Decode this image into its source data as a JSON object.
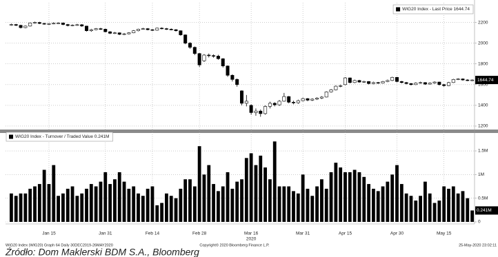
{
  "chart_data": [
    {
      "type": "candlestick",
      "legend_position": "upper right",
      "grid": true,
      "ylim": [
        1160,
        2350
      ],
      "yticks": [
        1200,
        1400,
        1600,
        1800,
        2000,
        2200
      ],
      "series": [
        {
          "name": "WIG20 Index - Last Price 1644.74",
          "color": "#000000",
          "open": [
            2175,
            2180,
            2172,
            2150,
            2165,
            2195,
            2200,
            2190,
            2185,
            2188,
            2192,
            2195,
            2180,
            2170,
            2175,
            2178,
            2165,
            2120,
            2130,
            2140,
            2135,
            2110,
            2095,
            2100,
            2085,
            2090,
            2100,
            2120,
            2135,
            2140,
            2130,
            2125,
            2145,
            2140,
            2135,
            2130,
            2120,
            2080,
            2000,
            1960,
            1900,
            1830,
            1885,
            1880,
            1875,
            1850,
            1780,
            1690,
            1650,
            1540,
            1420,
            1400,
            1330,
            1345,
            1320,
            1390,
            1420,
            1405,
            1440,
            1485,
            1430,
            1425,
            1445,
            1465,
            1450,
            1460,
            1470,
            1480,
            1530,
            1550,
            1585,
            1600,
            1665,
            1620,
            1640,
            1625,
            1630,
            1610,
            1620,
            1615,
            1630,
            1640,
            1670,
            1630,
            1620,
            1610,
            1600,
            1615,
            1620,
            1605,
            1615,
            1625,
            1600,
            1590,
            1620,
            1650,
            1655,
            1645,
            1640
          ],
          "high": [
            2188,
            2186,
            2178,
            2170,
            2200,
            2208,
            2206,
            2196,
            2194,
            2200,
            2202,
            2199,
            2186,
            2182,
            2186,
            2184,
            2168,
            2138,
            2146,
            2148,
            2140,
            2116,
            2108,
            2104,
            2098,
            2106,
            2126,
            2140,
            2148,
            2146,
            2136,
            2150,
            2152,
            2146,
            2142,
            2136,
            2124,
            2084,
            2010,
            1968,
            1905,
            1895,
            1900,
            1892,
            1888,
            1855,
            1785,
            1700,
            1660,
            1545,
            1500,
            1410,
            1370,
            1360,
            1400,
            1435,
            1430,
            1452,
            1520,
            1490,
            1445,
            1455,
            1475,
            1470,
            1468,
            1478,
            1488,
            1536,
            1558,
            1592,
            1600,
            1672,
            1668,
            1648,
            1646,
            1638,
            1634,
            1628,
            1626,
            1636,
            1648,
            1676,
            1674,
            1636,
            1626,
            1616,
            1622,
            1628,
            1624,
            1622,
            1632,
            1628,
            1606,
            1626,
            1656,
            1662,
            1660,
            1652,
            1650
          ],
          "low": [
            2168,
            2165,
            2142,
            2144,
            2160,
            2188,
            2184,
            2178,
            2176,
            2182,
            2186,
            2174,
            2162,
            2164,
            2168,
            2158,
            2112,
            2110,
            2124,
            2128,
            2104,
            2088,
            2088,
            2078,
            2078,
            2084,
            2096,
            2114,
            2130,
            2124,
            2118,
            2120,
            2134,
            2128,
            2124,
            2112,
            2072,
            1990,
            1945,
            1885,
            1770,
            1820,
            1862,
            1860,
            1840,
            1765,
            1675,
            1630,
            1580,
            1400,
            1390,
            1310,
            1300,
            1290,
            1310,
            1370,
            1390,
            1395,
            1435,
            1420,
            1410,
            1415,
            1438,
            1440,
            1442,
            1452,
            1462,
            1476,
            1524,
            1545,
            1575,
            1595,
            1612,
            1614,
            1618,
            1618,
            1602,
            1604,
            1608,
            1610,
            1624,
            1634,
            1622,
            1612,
            1602,
            1592,
            1596,
            1608,
            1598,
            1600,
            1608,
            1592,
            1580,
            1586,
            1616,
            1644,
            1638,
            1634,
            1634
          ],
          "close": [
            2180,
            2172,
            2150,
            2165,
            2195,
            2200,
            2190,
            2185,
            2188,
            2192,
            2195,
            2180,
            2170,
            2175,
            2178,
            2165,
            2120,
            2130,
            2140,
            2135,
            2110,
            2095,
            2100,
            2085,
            2090,
            2100,
            2120,
            2135,
            2140,
            2130,
            2125,
            2145,
            2140,
            2135,
            2130,
            2120,
            2080,
            2000,
            1960,
            1900,
            1790,
            1885,
            1880,
            1875,
            1850,
            1780,
            1690,
            1650,
            1600,
            1420,
            1440,
            1330,
            1345,
            1320,
            1390,
            1420,
            1405,
            1440,
            1485,
            1430,
            1425,
            1445,
            1465,
            1450,
            1460,
            1470,
            1480,
            1530,
            1550,
            1585,
            1590,
            1665,
            1620,
            1640,
            1625,
            1630,
            1610,
            1620,
            1615,
            1630,
            1640,
            1670,
            1630,
            1620,
            1610,
            1600,
            1615,
            1620,
            1605,
            1615,
            1625,
            1600,
            1590,
            1620,
            1650,
            1655,
            1645,
            1640,
            1644.74
          ]
        }
      ]
    },
    {
      "type": "bar",
      "legend_position": "upper left",
      "grid": true,
      "xlabel": "2020",
      "categories": [
        null,
        null,
        null,
        null,
        null,
        null,
        null,
        null,
        "Jan 15",
        null,
        null,
        null,
        null,
        null,
        null,
        null,
        null,
        null,
        null,
        null,
        "Jan 31",
        null,
        null,
        null,
        null,
        null,
        null,
        null,
        null,
        null,
        "Feb 14",
        null,
        null,
        null,
        null,
        null,
        null,
        null,
        null,
        null,
        "Feb 28",
        null,
        null,
        null,
        null,
        null,
        null,
        null,
        null,
        null,
        null,
        "Mar 16",
        null,
        null,
        null,
        null,
        null,
        null,
        null,
        null,
        null,
        null,
        "Mar 31",
        null,
        null,
        null,
        null,
        null,
        null,
        null,
        null,
        "Apr 15",
        null,
        null,
        null,
        null,
        null,
        null,
        null,
        null,
        null,
        null,
        "Apr 30",
        null,
        null,
        null,
        null,
        null,
        null,
        null,
        null,
        null,
        "May 15",
        null,
        null,
        null,
        null,
        null,
        null
      ],
      "ylim": [
        0,
        1850000
      ],
      "yticks": [
        0,
        {
          "value": 500000,
          "label": "0.5M"
        },
        {
          "value": 1000000,
          "label": "1M"
        },
        {
          "value": 1500000,
          "label": "1.5M"
        }
      ],
      "series": [
        {
          "name": "WIG20 Index - Turnover / Traded Value 0.241M",
          "color": "#000000",
          "values": [
            600000,
            550000,
            600000,
            600000,
            700000,
            750000,
            800000,
            1100000,
            800000,
            1200000,
            550000,
            600000,
            700000,
            750000,
            550000,
            600000,
            700000,
            800000,
            750000,
            850000,
            1050000,
            800000,
            900000,
            1050000,
            850000,
            700000,
            750000,
            600000,
            550000,
            700000,
            750000,
            350000,
            400000,
            600000,
            550000,
            500000,
            700000,
            900000,
            900000,
            750000,
            1600000,
            1000000,
            1200000,
            800000,
            650000,
            750000,
            1050000,
            700000,
            850000,
            900000,
            1350000,
            1450000,
            1200000,
            1400000,
            1150000,
            900000,
            1700000,
            750000,
            750000,
            750000,
            650000,
            600000,
            1000000,
            700000,
            550000,
            750000,
            900000,
            700000,
            1050000,
            1250000,
            1150000,
            1050000,
            1050000,
            1100000,
            1050000,
            950000,
            800000,
            700000,
            650000,
            750000,
            850000,
            1000000,
            1200000,
            800000,
            600000,
            550000,
            450000,
            550000,
            850000,
            600000,
            400000,
            450000,
            750000,
            700000,
            750000,
            600000,
            650000,
            500000,
            241000
          ],
          "value_labels": [
            null,
            null,
            null,
            null,
            null,
            null,
            null,
            null,
            null,
            null,
            null,
            null,
            null,
            null,
            null,
            null,
            null,
            null,
            null,
            null,
            null,
            null,
            null,
            null,
            null,
            null,
            null,
            null,
            null,
            null,
            null,
            null,
            null,
            null,
            null,
            null,
            null,
            null,
            null,
            null,
            null,
            null,
            null,
            null,
            null,
            null,
            null,
            null,
            null,
            null,
            null,
            null,
            null,
            null,
            null,
            null,
            null,
            null,
            null,
            null,
            null,
            null,
            null,
            null,
            null,
            null,
            null,
            null,
            null,
            null,
            null,
            null,
            null,
            null,
            null,
            null,
            null,
            null,
            null,
            null,
            null,
            null,
            null,
            null,
            null,
            null,
            null,
            null,
            null,
            null,
            null,
            null,
            null,
            null,
            null,
            null,
            null,
            null,
            "0.241M"
          ]
        }
      ]
    }
  ],
  "footer": {
    "left": "WIG20 Index (WIG20) Graph 64  Daily 30DEC2019-26MAY2020",
    "center": "Copyright© 2020 Bloomberg Finance L.P.",
    "right": "25-May-2020 23:02:11"
  },
  "caption": "Źródło: Dom Maklerski BDM S.A., Bloomberg"
}
